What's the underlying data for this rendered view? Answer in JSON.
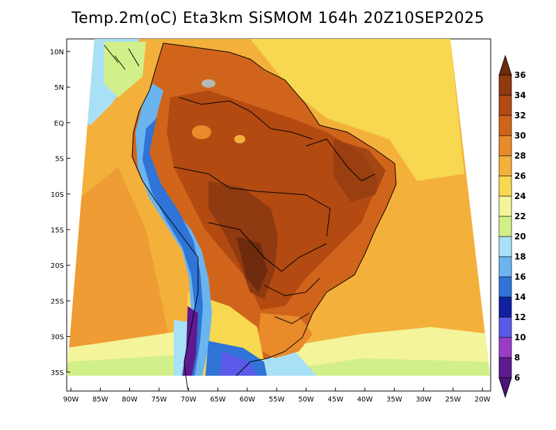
{
  "title": "Temp.2m(oC) Eta3km SiSMOM 164h 20Z10SEP2025",
  "map": {
    "variable": "Temp.2m(oC)",
    "model": "Eta3km SiSMOM",
    "forecast_hour": "164h",
    "valid_time": "20Z10SEP2025",
    "lat_ticks": [
      "10N",
      "5N",
      "EQ",
      "5S",
      "10S",
      "15S",
      "20S",
      "25S",
      "30S",
      "35S"
    ],
    "lon_ticks": [
      "90W",
      "85W",
      "80W",
      "75W",
      "70W",
      "65W",
      "60W",
      "55W",
      "50W",
      "45W",
      "40W",
      "35W",
      "30W",
      "25W",
      "20W"
    ]
  },
  "colorbar": {
    "labels": [
      "36",
      "34",
      "32",
      "30",
      "28",
      "26",
      "24",
      "22",
      "20",
      "18",
      "16",
      "14",
      "12",
      "10",
      "8",
      "6"
    ],
    "colors": [
      "#6e2a0c",
      "#8f3a10",
      "#b24a12",
      "#d1641b",
      "#e98a2b",
      "#f3b13c",
      "#f7d850",
      "#f4f49a",
      "#d2f08a",
      "#a8e0f5",
      "#6ab4f0",
      "#2f74d6",
      "#1020a0",
      "#5a5ae8",
      "#9a3cc8",
      "#5e1a90",
      "#4a1478"
    ]
  }
}
